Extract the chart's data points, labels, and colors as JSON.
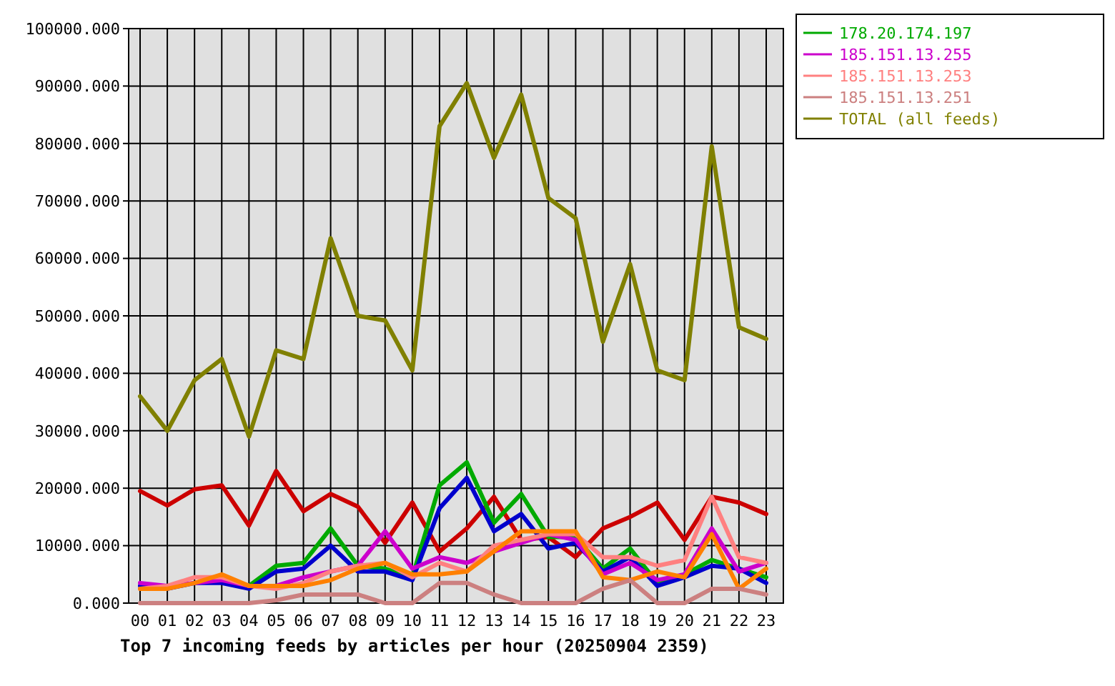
{
  "chart_data": {
    "type": "line",
    "title": "Top 7 incoming feeds by articles per hour (20250904 2359)",
    "categories": [
      "00",
      "01",
      "02",
      "03",
      "04",
      "05",
      "06",
      "07",
      "08",
      "09",
      "10",
      "11",
      "12",
      "13",
      "14",
      "15",
      "16",
      "17",
      "18",
      "19",
      "20",
      "21",
      "22",
      "23"
    ],
    "series": [
      {
        "color": "#cc0000",
        "values": [
          19500,
          17000,
          19800,
          20500,
          13500,
          23000,
          16000,
          19000,
          16800,
          10500,
          17500,
          9000,
          13000,
          18500,
          11000,
          11500,
          8000,
          13000,
          15000,
          17500,
          11000,
          18500,
          17500,
          15500
        ]
      },
      {
        "name": "178.20.174.197",
        "color": "#00aa00",
        "values": [
          null,
          null,
          null,
          4000,
          3000,
          6500,
          7000,
          13000,
          6500,
          6000,
          4500,
          20500,
          24500,
          14000,
          19000,
          11500,
          11500,
          6000,
          9500,
          3500,
          5000,
          7500,
          6000,
          4500
        ]
      },
      {
        "color": "#0000cc",
        "values": [
          3000,
          2500,
          3500,
          3500,
          2500,
          5500,
          6000,
          10000,
          5500,
          5500,
          4000,
          16500,
          21800,
          12500,
          15500,
          9500,
          10500,
          5500,
          8000,
          3000,
          4500,
          6500,
          6000,
          3500
        ]
      },
      {
        "name": "185.151.13.255",
        "color": "#cc00cc",
        "values": [
          3500,
          3000,
          3500,
          4000,
          3000,
          3000,
          4500,
          5500,
          6500,
          12500,
          6000,
          8000,
          7000,
          9000,
          10500,
          12000,
          11000,
          5000,
          7000,
          4000,
          5000,
          13000,
          5500,
          7000
        ]
      },
      {
        "name": "185.151.13.253",
        "color": "#ff8080",
        "values": [
          2500,
          3000,
          4500,
          4500,
          3000,
          2500,
          3500,
          5500,
          6500,
          7000,
          4500,
          7000,
          5500,
          10000,
          11000,
          12000,
          12000,
          8000,
          8000,
          6500,
          7500,
          18500,
          8000,
          7000
        ]
      },
      {
        "color": "#ff8000",
        "values": [
          2500,
          2500,
          3500,
          5000,
          3000,
          3000,
          3000,
          4000,
          6000,
          7000,
          5000,
          5000,
          5500,
          9000,
          12500,
          12500,
          12500,
          4500,
          4000,
          5500,
          4500,
          12000,
          2500,
          6000
        ]
      },
      {
        "name": "185.151.13.251",
        "color": "#cc8080",
        "values": [
          0,
          0,
          0,
          0,
          0,
          500,
          1500,
          1500,
          1500,
          0,
          0,
          3500,
          3500,
          1500,
          0,
          0,
          0,
          2500,
          4000,
          0,
          0,
          2500,
          2500,
          1500
        ]
      },
      {
        "name": "TOTAL (all feeds)",
        "color": "#808000",
        "values": [
          36000,
          30000,
          38800,
          42500,
          29000,
          44000,
          42500,
          63500,
          50000,
          49200,
          40500,
          83000,
          90500,
          77500,
          88500,
          70500,
          67000,
          45500,
          59000,
          40500,
          38800,
          79500,
          48000,
          46000
        ]
      }
    ],
    "ylim": [
      0,
      100000
    ],
    "yticks": [
      {
        "value": 0,
        "label": "0.000"
      },
      {
        "value": 10000,
        "label": "10000.000"
      },
      {
        "value": 20000,
        "label": "20000.000"
      },
      {
        "value": 30000,
        "label": "30000.000"
      },
      {
        "value": 40000,
        "label": "40000.000"
      },
      {
        "value": 50000,
        "label": "50000.000"
      },
      {
        "value": 60000,
        "label": "60000.000"
      },
      {
        "value": 70000,
        "label": "70000.000"
      },
      {
        "value": 80000,
        "label": "80000.000"
      },
      {
        "value": 90000,
        "label": "90000.000"
      },
      {
        "value": 100000,
        "label": "100000.000"
      }
    ],
    "grid": true,
    "legend": "top right"
  }
}
